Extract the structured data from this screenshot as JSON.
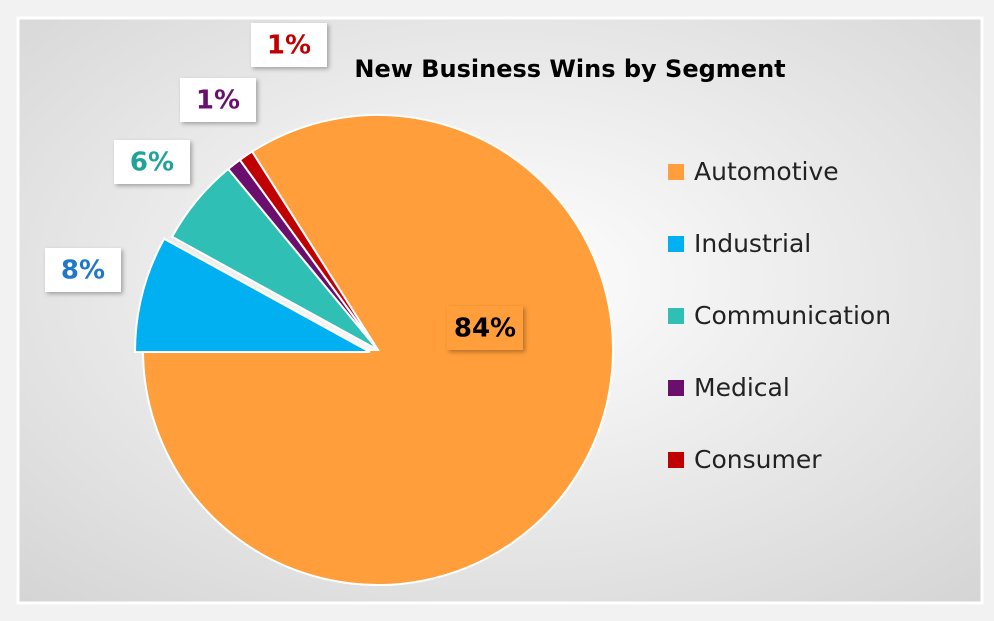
{
  "chart_data": {
    "type": "pie",
    "title": "New Business Wins by Segment",
    "categories": [
      "Automotive",
      "Industrial",
      "Communication",
      "Medical",
      "Consumer"
    ],
    "values": [
      84,
      8,
      6,
      1,
      1
    ],
    "value_labels": [
      "84%",
      "8%",
      "6%",
      "1%",
      "1%"
    ],
    "colors": [
      "#FF9E3A",
      "#00B0F0",
      "#2FBFB5",
      "#6A0F6E",
      "#C00000"
    ],
    "legend": "right"
  }
}
